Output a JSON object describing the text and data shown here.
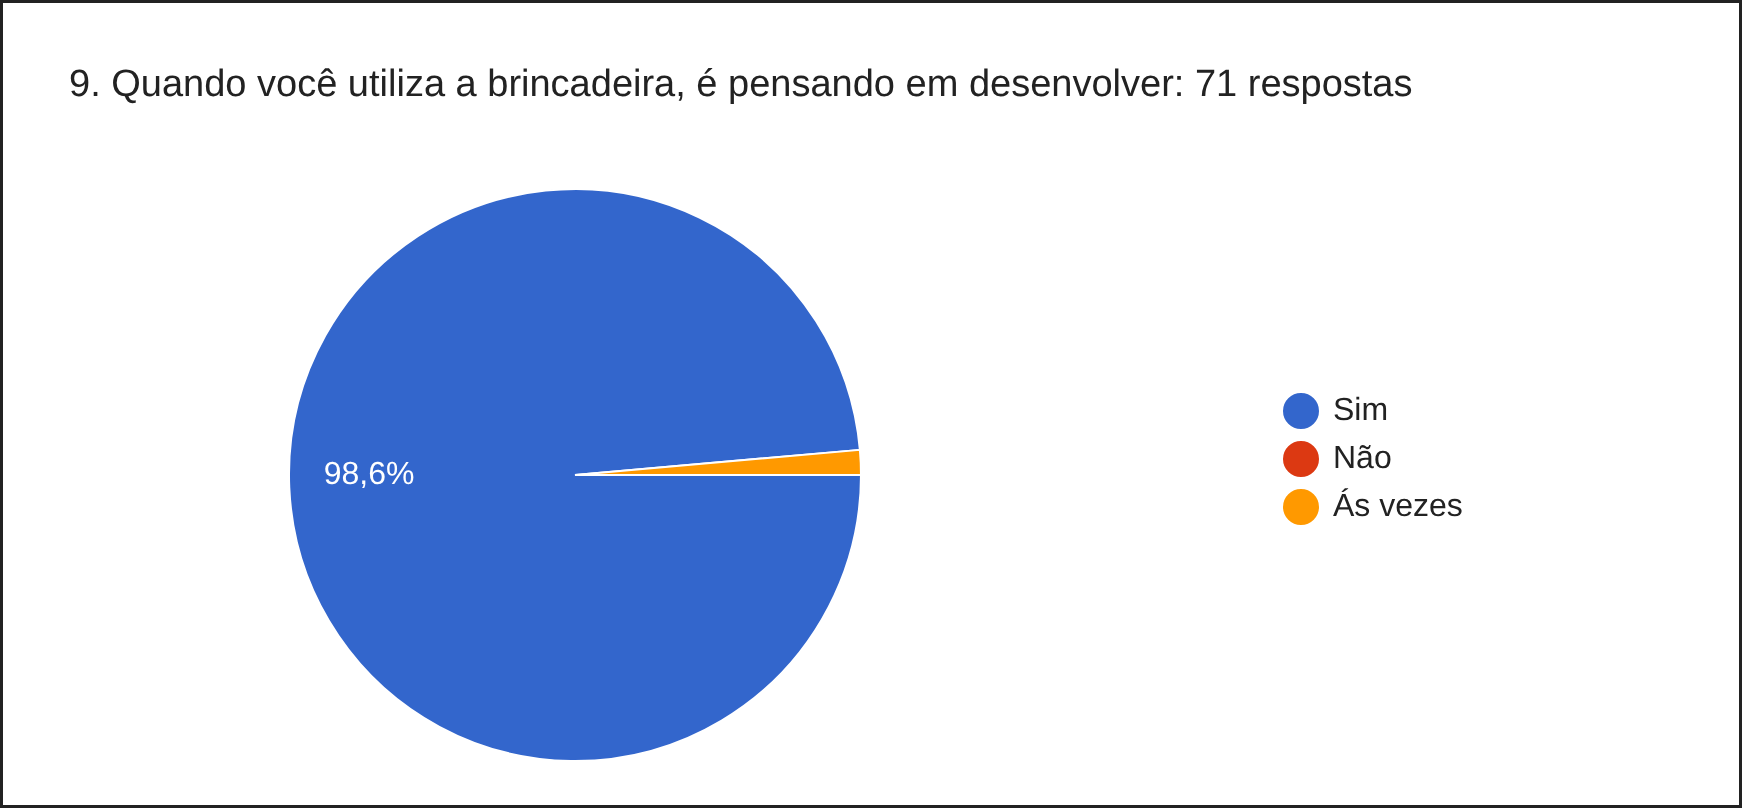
{
  "chart_data": {
    "type": "pie",
    "title": "9. Quando você utiliza a brincadeira, é pensando em desenvolver: 71 respostas",
    "categories": [
      "Sim",
      "Não",
      "Ás vezes"
    ],
    "values": [
      98.6,
      0,
      1.4
    ],
    "colors": [
      "#3366cc",
      "#dc3912",
      "#ff9900"
    ],
    "value_labels": [
      "98,6%",
      null,
      null
    ],
    "legend": "right"
  }
}
